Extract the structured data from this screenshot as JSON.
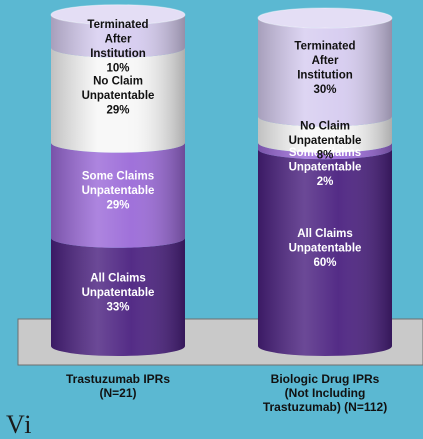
{
  "colors": {
    "background": "#5bb8d2",
    "floor": "#c9c9c9",
    "floor_edge": "#6e6e6e"
  },
  "chart_data": {
    "type": "bar",
    "subtype": "stacked-cylinder-percent",
    "title": "",
    "xlabel": "",
    "ylabel": "",
    "ylim": [
      0,
      100
    ],
    "grid": false,
    "legend": "none",
    "categories": [
      "Trastuzumab IPRs\n(N=21)",
      "Biologic Drug IPRs\n(Not Including\nTrastuzumab) (N=112)"
    ],
    "series": [
      {
        "name": "All Claims Unpatentable",
        "label": "All Claims\nUnpatentable",
        "color": "#4b2180",
        "text_color": "#ffffff",
        "values": [
          33,
          60
        ]
      },
      {
        "name": "Some Claims Unpatentable",
        "label": "Some Claims\nUnpatentable",
        "color": "#9b6ad8",
        "text_color": "#ffffff",
        "values": [
          29,
          2
        ]
      },
      {
        "name": "No Claim Unpatentable",
        "label": "No Claim\nUnpatentable",
        "color": "#f7f7f7",
        "text_color": "#111111",
        "values": [
          29,
          8
        ]
      },
      {
        "name": "Terminated After Institution",
        "label": "Terminated\nAfter\nInstitution",
        "color": "#d6ccf0",
        "text_color": "#111111",
        "values": [
          10,
          30
        ]
      }
    ]
  },
  "footer": {
    "corner_text": "Vi"
  }
}
